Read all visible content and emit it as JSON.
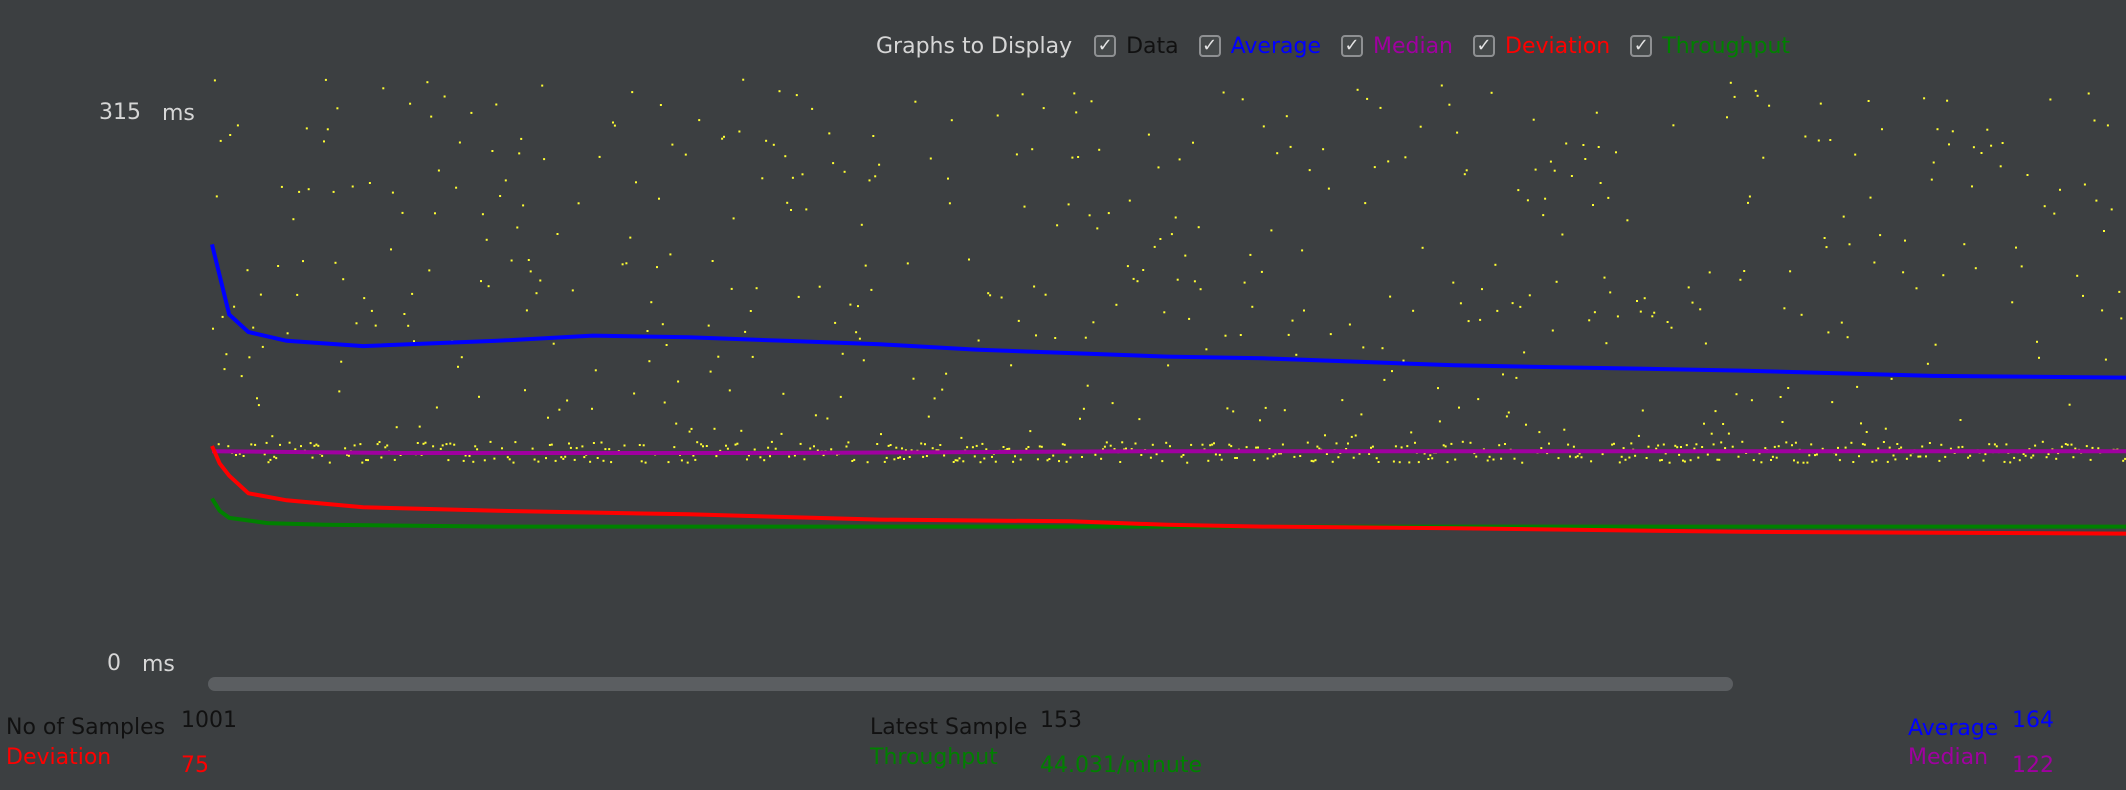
{
  "toolbar": {
    "title": "Graphs to Display",
    "items": [
      {
        "label": "Data",
        "checked": true,
        "color": "#111111"
      },
      {
        "label": "Average",
        "checked": true,
        "color": "#0000ff"
      },
      {
        "label": "Median",
        "checked": true,
        "color": "#a000a0"
      },
      {
        "label": "Deviation",
        "checked": true,
        "color": "#ff0000"
      },
      {
        "label": "Throughput",
        "checked": true,
        "color": "#008000"
      }
    ],
    "check_glyph": "✓"
  },
  "axis": {
    "max_label": "315",
    "min_label": "0",
    "unit": "ms"
  },
  "stats": {
    "samples_label": "No of Samples",
    "samples_value": "1001",
    "deviation_label": "Deviation",
    "deviation_value": "75",
    "latest_label": "Latest Sample",
    "latest_value": "153",
    "throughput_label": "Throughput",
    "throughput_value": "44.031/minute",
    "average_label": "Average",
    "average_value": "164",
    "median_label": "Median",
    "median_value": "122"
  },
  "colors": {
    "background": "#3c3f41",
    "data": "#ffff33",
    "average": "#0000ff",
    "median": "#a000a0",
    "deviation": "#ff0000",
    "throughput": "#008000",
    "text": "#d6d6d6",
    "value_text": "#e8e8e8"
  },
  "chart_data": {
    "type": "line",
    "ylim": [
      0,
      315
    ],
    "y_unit": "ms",
    "n_samples": 1001,
    "series": [
      {
        "name": "Average",
        "x": [
          1,
          10,
          20,
          40,
          80,
          150,
          200,
          250,
          300,
          350,
          400,
          450,
          500,
          550,
          600,
          650,
          700,
          750,
          800,
          900,
          1001
        ],
        "values": [
          240,
          200,
          190,
          185,
          182,
          185,
          188,
          187,
          185,
          183,
          180,
          178,
          176,
          175,
          173,
          171,
          170,
          169,
          168,
          165,
          164
        ]
      },
      {
        "name": "Median",
        "x": [
          1,
          100,
          300,
          500,
          700,
          900,
          1001
        ],
        "values": [
          122,
          121,
          121,
          122,
          122,
          122,
          122
        ]
      },
      {
        "name": "Deviation",
        "x": [
          1,
          5,
          10,
          20,
          40,
          80,
          150,
          250,
          350,
          450,
          500,
          550,
          650,
          800,
          1001
        ],
        "values": [
          125,
          115,
          108,
          98,
          94,
          90,
          88,
          86,
          83,
          82,
          80,
          79,
          78,
          76,
          75
        ]
      },
      {
        "name": "Throughput",
        "x": [
          1,
          5,
          10,
          30,
          60,
          150,
          300,
          500,
          700,
          1001
        ],
        "values": [
          95,
          88,
          84,
          81,
          80,
          79,
          79,
          79,
          79,
          79
        ]
      }
    ],
    "scatter": {
      "name": "Data",
      "count": 1001,
      "cluster_center": 122,
      "cluster_spread": 6,
      "outlier_range": [
        130,
        335
      ]
    }
  }
}
